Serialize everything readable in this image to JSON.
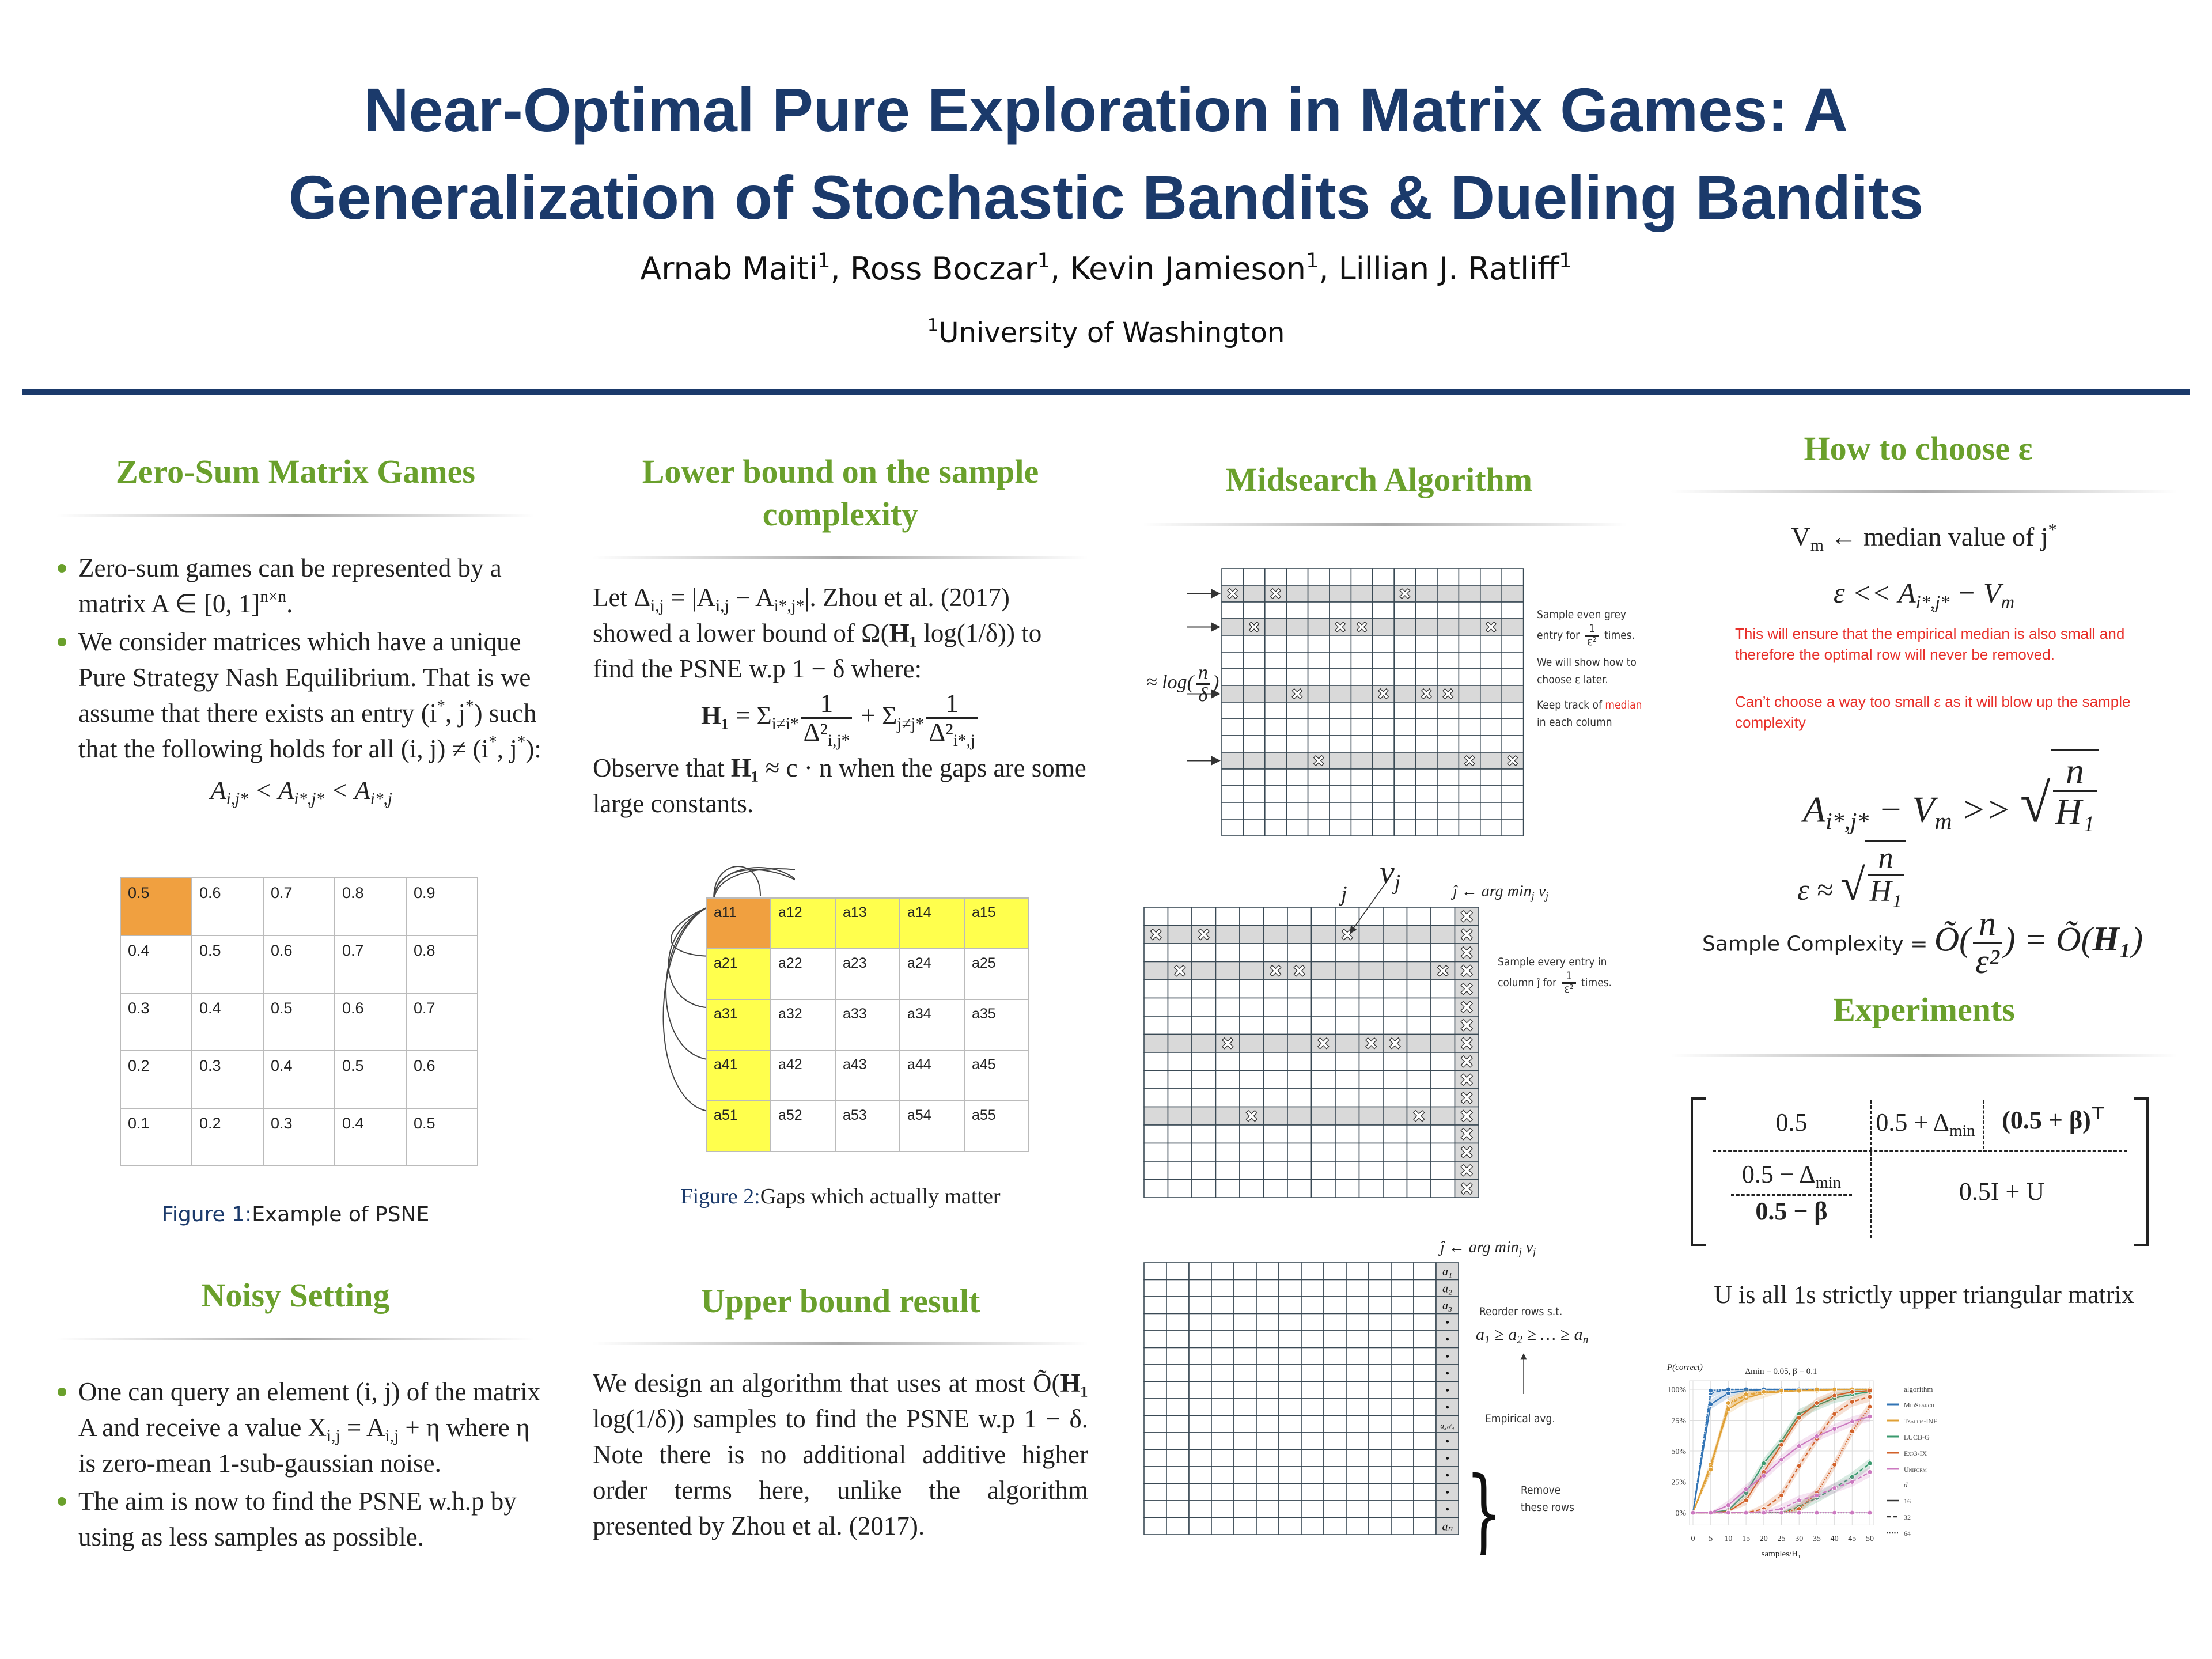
{
  "header": {
    "title_line1": "Near-Optimal Pure Exploration in Matrix Games: A",
    "title_line2": "Generalization of Stochastic Bandits & Dueling Bandits",
    "authors": [
      "Arnab Maiti",
      "^1",
      ", Ross Boczar",
      "^1",
      ", Kevin Jamieson",
      "^1",
      ", Lillian J. Ratliff",
      "^1"
    ],
    "affiliation": [
      "^1",
      "University of Washington"
    ]
  },
  "colors": {
    "title": "#1b3a6b",
    "section_header": "#6aa02c",
    "red_text": "#e8302a",
    "psne_cell": "#f0a040",
    "highlight_yellow": "#ffff4d",
    "grey_row": "#d9d9d9"
  },
  "zero_sum": {
    "heading": "Zero-Sum Matrix Games",
    "bullets": [
      [
        "Zero-sum games can be represented by a matrix ",
        "A ∈ [0, 1]",
        "^n×n",
        "."
      ],
      [
        "We consider matrices which have a unique Pure Strategy Nash Equilibrium. That is we assume that there exists an entry (i",
        "^*",
        ", j",
        "^*",
        ") such that the following holds for all (i, j) ≠ (i",
        "^*",
        ", j",
        "^*",
        "):"
      ]
    ],
    "condition": [
      "A",
      "_i,j*",
      " < A",
      "_i*,j*",
      " < A",
      "_i*,j"
    ],
    "table": [
      [
        "0.5",
        "0.6",
        "0.7",
        "0.8",
        "0.9"
      ],
      [
        "0.4",
        "0.5",
        "0.6",
        "0.7",
        "0.8"
      ],
      [
        "0.3",
        "0.4",
        "0.5",
        "0.6",
        "0.7"
      ],
      [
        "0.2",
        "0.3",
        "0.4",
        "0.5",
        "0.6"
      ],
      [
        "0.1",
        "0.2",
        "0.3",
        "0.4",
        "0.5"
      ]
    ],
    "caption_label": "Figure 1:",
    "caption_text": "Example of PSNE"
  },
  "noisy": {
    "heading": "Noisy Setting",
    "bullets": [
      [
        "One can query an element (i, j) of the matrix A and receive a value X",
        "_i,j",
        " = A",
        "_i,j",
        " + η where η is zero-mean 1-sub-gaussian noise."
      ],
      [
        "The aim is now to find the PSNE w.h.p by using as less samples as possible."
      ]
    ]
  },
  "lower_bound": {
    "heading": "Lower bound on the sample complexity",
    "intro": [
      "Let Δ",
      "_i,j",
      " = |A",
      "_i,j",
      " − A",
      "_i*,j*",
      "|. Zhou et al. (2017) showed a lower bound of Ω(",
      "!H₁",
      " log(1/δ)) to find the PSNE w.p 1 − δ where:"
    ],
    "formula": [
      "!H₁",
      " = Σ",
      "_i≠i*",
      "~1|Δ²_i,j*",
      " + Σ",
      "_j≠j*",
      "~1|Δ²_i*,j"
    ],
    "observe": [
      "Observe that ",
      "!H₁",
      " ≈ c · n when the gaps are some large constants."
    ],
    "table": [
      [
        "a11",
        "a12",
        "a13",
        "a14",
        "a15"
      ],
      [
        "a21",
        "a22",
        "a23",
        "a24",
        "a25"
      ],
      [
        "a31",
        "a32",
        "a33",
        "a34",
        "a35"
      ],
      [
        "a41",
        "a42",
        "a43",
        "a44",
        "a45"
      ],
      [
        "a51",
        "a52",
        "a53",
        "a54",
        "a55"
      ]
    ],
    "caption_label": "Figure 2:",
    "caption_text": "Gaps which actually matter"
  },
  "upper_bound": {
    "heading": "Upper bound result",
    "text": [
      "We design an algorithm that uses at most Õ(",
      "!H₁",
      " log(1/δ)) samples to find the PSNE w.p 1 − δ. Note there is no additional additive higher order terms here, unlike the algorithm presented by Zhou et al. (2017)."
    ]
  },
  "midsearch": {
    "heading": "Midsearch Algorithm",
    "step1": {
      "rows_label": [
        "≈ log(",
        "~n|δ",
        ")"
      ],
      "note1": [
        "Sample even grey entry for ",
        "~1|ε²",
        " times."
      ],
      "note2": [
        "We will show how to choose ",
        "ε",
        " later."
      ],
      "note3_a": "Keep track of ",
      "note3_red": "median",
      "note3_b": " in each column",
      "grey_rows": [
        1,
        3,
        7,
        11
      ],
      "sampled": {
        "1": [
          0,
          2,
          8
        ],
        "3": [
          1,
          5,
          6,
          12
        ],
        "7": [
          3,
          7,
          9,
          10
        ],
        "11": [
          4,
          11,
          13
        ]
      }
    },
    "step2": {
      "vj_label": [
        "v",
        "_j"
      ],
      "j_label": "j",
      "jhat_label": [
        "ĵ ← arg min",
        "_j",
        " v",
        "_j"
      ],
      "note": [
        "Sample every entry in column ",
        "ĵ",
        " for ",
        "~1|ε²",
        " times."
      ],
      "grey_rows": [
        1,
        3,
        7,
        11
      ],
      "sampled": {
        "1": [
          0,
          2,
          8
        ],
        "3": [
          1,
          5,
          6,
          12
        ],
        "7": [
          3,
          7,
          9,
          10
        ],
        "11": [
          4,
          11
        ]
      }
    },
    "step3": {
      "jhat_label": [
        "ĵ ← arg min",
        "_j",
        " v",
        "_j"
      ],
      "column_labels": [
        "a₁",
        "a₂",
        "a₃",
        "•",
        "•",
        "•",
        "•",
        "•",
        "•",
        "a₃ₙ/₄",
        "•",
        "•",
        "•",
        "•",
        "•",
        "aₙ"
      ],
      "note_reorder": "Reorder rows s.t.",
      "order": [
        "a",
        "_1",
        " ≥ a",
        "_2",
        " ≥ … ≥ a",
        "_n"
      ],
      "note_avg": "Empirical avg.",
      "note_remove": "Remove these rows"
    }
  },
  "choose_eps": {
    "heading": "How to choose ε",
    "line1": [
      "V",
      "_m",
      " ← ",
      "median value of j",
      "^*"
    ],
    "line2": [
      "ε << A",
      "_i*,j*",
      " − V",
      "_m"
    ],
    "red1": "This will ensure that the empirical median is also small and therefore the optimal row will never be removed.",
    "red2": "Can’t choose a way too small ε as it will blow up the sample complexity",
    "line3": [
      "A",
      "_i*,j*",
      " − V",
      "_m",
      " >> ",
      "@n|H₁"
    ],
    "line4": [
      "ε ≈ ",
      "@n|H₁"
    ],
    "sc_label": "Sample Complexity = ",
    "sc_formula": [
      "Õ(",
      "~n|ε²",
      ") = Õ(",
      "!H₁",
      ")"
    ]
  },
  "experiments": {
    "heading": "Experiments",
    "matrix": {
      "c11": "0.5",
      "c12": [
        "0.5 + Δ",
        "_min"
      ],
      "c13": [
        "(0.5 + β)",
        "^⊤"
      ],
      "c21": [
        "0.5 − Δ",
        "_min"
      ],
      "c31": [
        "0.5 − β"
      ],
      "c22": "0.5I + U"
    },
    "u_note": "U is all 1s strictly upper triangular matrix"
  },
  "chart_data": {
    "type": "line",
    "title": "Δmin = 0.05, β = 0.1",
    "ylabel": "P(correct)",
    "xlabel": "samples/H₁",
    "x": [
      0,
      5,
      10,
      15,
      20,
      25,
      30,
      35,
      40,
      45,
      50
    ],
    "xticks": [
      "0",
      "5",
      "10",
      "15",
      "20",
      "25",
      "30",
      "35",
      "40",
      "45",
      "50"
    ],
    "yticks": [
      "0%",
      "25%",
      "50%",
      "75%",
      "100%"
    ],
    "xlim": [
      0,
      50
    ],
    "ylim": [
      -10,
      107
    ],
    "grid": true,
    "legend_placement": "right",
    "legend_title_algorithm": "algorithm",
    "legend_title_d": "d",
    "algorithms": [
      {
        "name": "MidSearch",
        "color": "#3274b5"
      },
      {
        "name": "Tsallis-INF",
        "color": "#e0a035"
      },
      {
        "name": "LUCB-G",
        "color": "#3a9a6e"
      },
      {
        "name": "Exp3-IX",
        "color": "#d2622a"
      },
      {
        "name": "Uniform",
        "color": "#cc79c0"
      }
    ],
    "d_values": [
      {
        "name": "16",
        "dash": "solid"
      },
      {
        "name": "32",
        "dash": "dashed"
      },
      {
        "name": "64",
        "dash": "dotted"
      }
    ],
    "series": [
      {
        "algorithm": "MidSearch",
        "d": "16",
        "values": [
          0,
          88,
          97,
          99,
          100,
          100,
          100,
          100,
          100,
          100,
          100
        ]
      },
      {
        "algorithm": "MidSearch",
        "d": "32",
        "values": [
          0,
          97,
          100,
          100,
          100,
          100,
          100,
          100,
          100,
          100,
          100
        ]
      },
      {
        "algorithm": "MidSearch",
        "d": "64",
        "values": [
          0,
          99,
          100,
          100,
          100,
          100,
          100,
          100,
          100,
          100,
          100
        ]
      },
      {
        "algorithm": "Tsallis-INF",
        "d": "16",
        "values": [
          0,
          39,
          84,
          93,
          97,
          98,
          99,
          99,
          100,
          100,
          100
        ]
      },
      {
        "algorithm": "Tsallis-INF",
        "d": "32",
        "values": [
          0,
          37,
          88,
          95,
          98,
          99,
          99,
          100,
          100,
          100,
          100
        ]
      },
      {
        "algorithm": "Tsallis-INF",
        "d": "64",
        "values": [
          0,
          35,
          89,
          96,
          98,
          99,
          99,
          100,
          100,
          100,
          100
        ]
      },
      {
        "algorithm": "LUCB-G",
        "d": "16",
        "values": [
          0,
          0,
          2,
          16,
          40,
          58,
          80,
          87,
          93,
          96,
          98
        ]
      },
      {
        "algorithm": "LUCB-G",
        "d": "32",
        "values": [
          0,
          0,
          0,
          0,
          0,
          0,
          5,
          12,
          20,
          29,
          40
        ]
      },
      {
        "algorithm": "LUCB-G",
        "d": "64",
        "values": [
          0,
          0,
          0,
          0,
          0,
          0,
          0,
          0,
          0,
          0,
          0
        ]
      },
      {
        "algorithm": "Exp3-IX",
        "d": "16",
        "values": [
          0,
          0,
          1,
          10,
          33,
          55,
          77,
          89,
          95,
          98,
          99
        ]
      },
      {
        "algorithm": "Exp3-IX",
        "d": "32",
        "values": [
          0,
          0,
          0,
          0,
          3,
          14,
          38,
          60,
          80,
          90,
          94
        ]
      },
      {
        "algorithm": "Exp3-IX",
        "d": "64",
        "values": [
          0,
          0,
          0,
          0,
          0,
          0,
          3,
          16,
          39,
          66,
          86
        ]
      },
      {
        "algorithm": "Uniform",
        "d": "16",
        "values": [
          0,
          0,
          6,
          19,
          30,
          43,
          54,
          62,
          68,
          74,
          78
        ]
      },
      {
        "algorithm": "Uniform",
        "d": "32",
        "values": [
          0,
          0,
          0,
          0,
          1,
          3,
          10,
          14,
          20,
          25,
          33
        ]
      },
      {
        "algorithm": "Uniform",
        "d": "64",
        "values": [
          0,
          0,
          0,
          0,
          0,
          0,
          0,
          0,
          0,
          0,
          0
        ]
      }
    ]
  }
}
